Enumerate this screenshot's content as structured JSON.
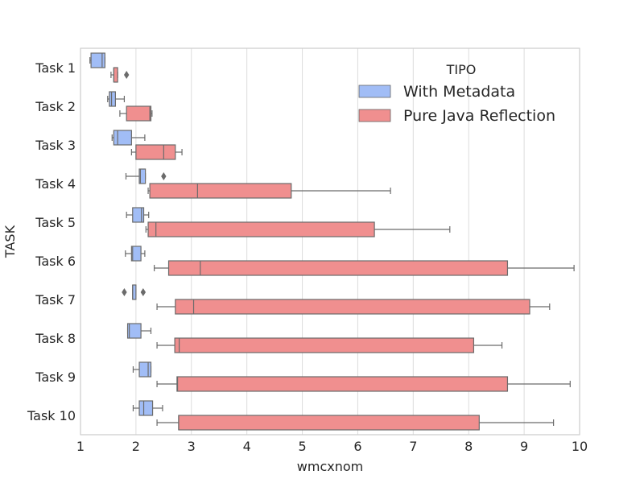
{
  "chart_data": {
    "type": "box",
    "orientation": "horizontal",
    "title": "",
    "xlabel": "wmcxnom",
    "ylabel": "TASK",
    "xlim": [
      1,
      10
    ],
    "xticks": [
      1,
      2,
      3,
      4,
      5,
      6,
      7,
      8,
      9,
      10
    ],
    "grid": "vertical",
    "categories": [
      "Task 1",
      "Task 2",
      "Task 3",
      "Task 4",
      "Task 5",
      "Task 6",
      "Task 7",
      "Task 8",
      "Task 9",
      "Task 10"
    ],
    "legend": {
      "title": "TIPO",
      "position": "top-right"
    },
    "series": [
      {
        "name": "With Metadata",
        "color": "#a1bdf6",
        "boxes": [
          {
            "whislo": 1.17,
            "q1": 1.19,
            "med": 1.39,
            "q3": 1.44,
            "whishi": 1.44,
            "fliers": []
          },
          {
            "whislo": 1.49,
            "q1": 1.52,
            "med": 1.56,
            "q3": 1.63,
            "whishi": 1.79,
            "fliers": []
          },
          {
            "whislo": 1.57,
            "q1": 1.6,
            "med": 1.67,
            "q3": 1.92,
            "whishi": 2.16,
            "fliers": []
          },
          {
            "whislo": 1.82,
            "q1": 2.06,
            "med": 2.08,
            "q3": 2.17,
            "whishi": 2.17,
            "fliers": [
              2.5
            ]
          },
          {
            "whislo": 1.83,
            "q1": 1.94,
            "med": 2.1,
            "q3": 2.14,
            "whishi": 2.23,
            "fliers": []
          },
          {
            "whislo": 1.81,
            "q1": 1.92,
            "med": 1.94,
            "q3": 2.09,
            "whishi": 2.16,
            "fliers": []
          },
          {
            "whislo": 1.94,
            "q1": 1.94,
            "med": 1.94,
            "q3": 2.0,
            "whishi": 2.0,
            "fliers": [
              1.79,
              2.13
            ]
          },
          {
            "whislo": 1.85,
            "q1": 1.85,
            "med": 1.88,
            "q3": 2.09,
            "whishi": 2.27,
            "fliers": []
          },
          {
            "whislo": 1.95,
            "q1": 2.06,
            "med": 2.22,
            "q3": 2.27,
            "whishi": 2.27,
            "fliers": []
          },
          {
            "whislo": 1.95,
            "q1": 2.06,
            "med": 2.14,
            "q3": 2.3,
            "whishi": 2.48,
            "fliers": []
          }
        ]
      },
      {
        "name": "Pure Java Reflection",
        "color": "#f08f8f",
        "boxes": [
          {
            "whislo": 1.55,
            "q1": 1.6,
            "med": 1.6,
            "q3": 1.67,
            "whishi": 1.67,
            "fliers": [
              1.83
            ]
          },
          {
            "whislo": 1.71,
            "q1": 1.83,
            "med": 2.25,
            "q3": 2.27,
            "whishi": 2.29,
            "fliers": []
          },
          {
            "whislo": 1.92,
            "q1": 2.0,
            "med": 2.5,
            "q3": 2.71,
            "whishi": 2.83,
            "fliers": []
          },
          {
            "whislo": 2.22,
            "q1": 2.25,
            "med": 3.11,
            "q3": 4.8,
            "whishi": 6.59,
            "fliers": []
          },
          {
            "whislo": 2.18,
            "q1": 2.22,
            "med": 2.36,
            "q3": 6.3,
            "whishi": 7.66,
            "fliers": []
          },
          {
            "whislo": 2.33,
            "q1": 2.59,
            "med": 3.16,
            "q3": 8.7,
            "whishi": 9.9,
            "fliers": []
          },
          {
            "whislo": 2.38,
            "q1": 2.71,
            "med": 3.04,
            "q3": 9.1,
            "whishi": 9.46,
            "fliers": []
          },
          {
            "whislo": 2.38,
            "q1": 2.7,
            "med": 2.78,
            "q3": 8.09,
            "whishi": 8.6,
            "fliers": []
          },
          {
            "whislo": 2.38,
            "q1": 2.74,
            "med": 2.75,
            "q3": 8.7,
            "whishi": 9.83,
            "fliers": []
          },
          {
            "whislo": 2.38,
            "q1": 2.77,
            "med": 2.77,
            "q3": 8.19,
            "whishi": 9.53,
            "fliers": []
          }
        ]
      }
    ]
  }
}
